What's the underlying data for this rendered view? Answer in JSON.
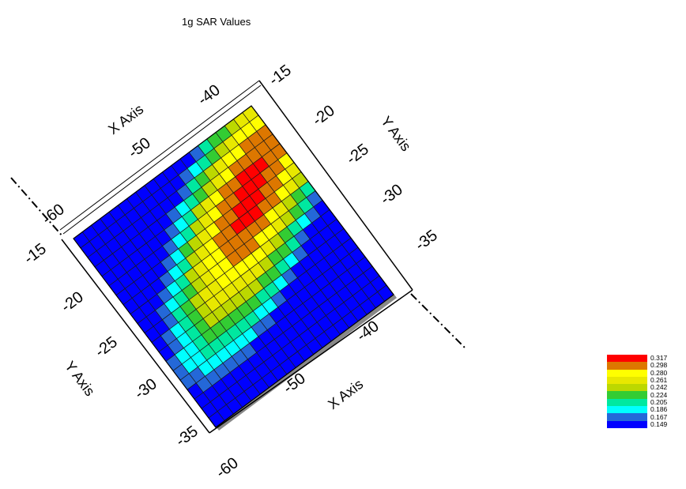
{
  "chart_data": {
    "type": "heatmap",
    "title": "1g SAR Values",
    "xlabel": "X Axis",
    "ylabel": "Y Axis",
    "x_ticks": [
      "-60",
      "-50",
      "-40"
    ],
    "y_ticks": [
      "-35",
      "-30",
      "-25",
      "-20",
      "-15"
    ],
    "xlim": [
      -62,
      -34
    ],
    "ylim": [
      -38,
      -13
    ],
    "grid": true,
    "legend_placement": "bottom-right",
    "color_levels": [
      {
        "value": "0.317",
        "color": "#ff0000"
      },
      {
        "value": "0.298",
        "color": "#dd7700"
      },
      {
        "value": "0.280",
        "color": "#ffff00"
      },
      {
        "value": "0.261",
        "color": "#e8e800"
      },
      {
        "value": "0.242",
        "color": "#bcd800"
      },
      {
        "value": "0.224",
        "color": "#33cc33"
      },
      {
        "value": "0.205",
        "color": "#00e8a0"
      },
      {
        "value": "0.186",
        "color": "#00ffff"
      },
      {
        "value": "0.167",
        "color": "#2468d8"
      },
      {
        "value": "0.149",
        "color": "#0000ff"
      }
    ],
    "peak": {
      "x": -45,
      "y": -21,
      "value": 0.317
    }
  }
}
